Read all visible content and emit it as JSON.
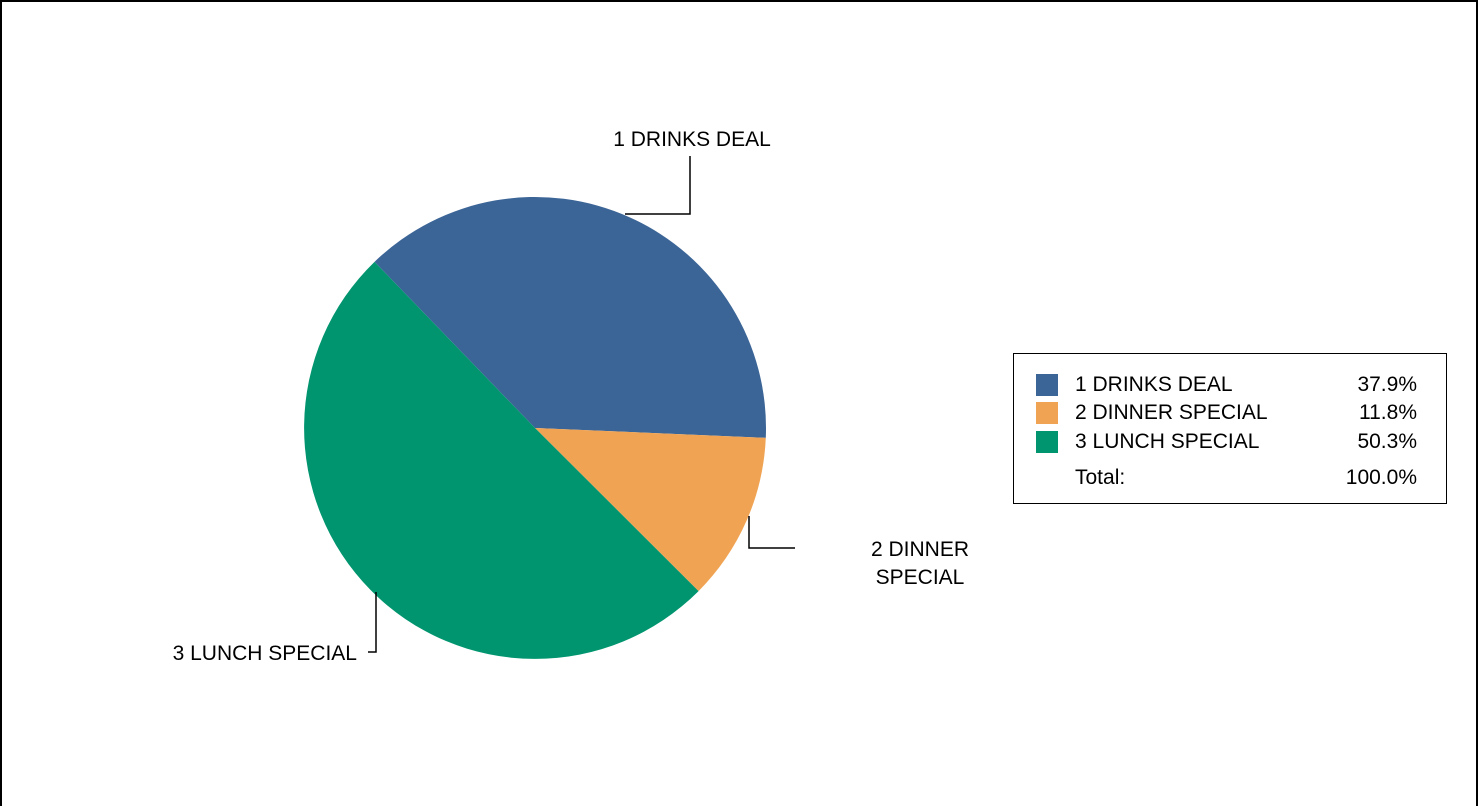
{
  "chart_data": {
    "type": "pie",
    "title": "",
    "slices": [
      {
        "label": "1 DRINKS DEAL",
        "value": 37.9,
        "display": "37.9%",
        "color": "#3c6597"
      },
      {
        "label": "2 DINNER SPECIAL",
        "value": 11.8,
        "display": "11.8%",
        "color": "#f0a453"
      },
      {
        "label": "3 LUNCH SPECIAL",
        "value": 50.3,
        "display": "50.3%",
        "color": "#00956f"
      }
    ],
    "callout_labels": [
      {
        "lines": [
          "1 DRINKS DEAL"
        ]
      },
      {
        "lines": [
          "2 DINNER",
          "SPECIAL"
        ]
      },
      {
        "lines": [
          "3 LUNCH SPECIAL"
        ]
      }
    ],
    "legend": {
      "position": "right",
      "total_label": "Total:",
      "total_value": "100.0%"
    }
  }
}
